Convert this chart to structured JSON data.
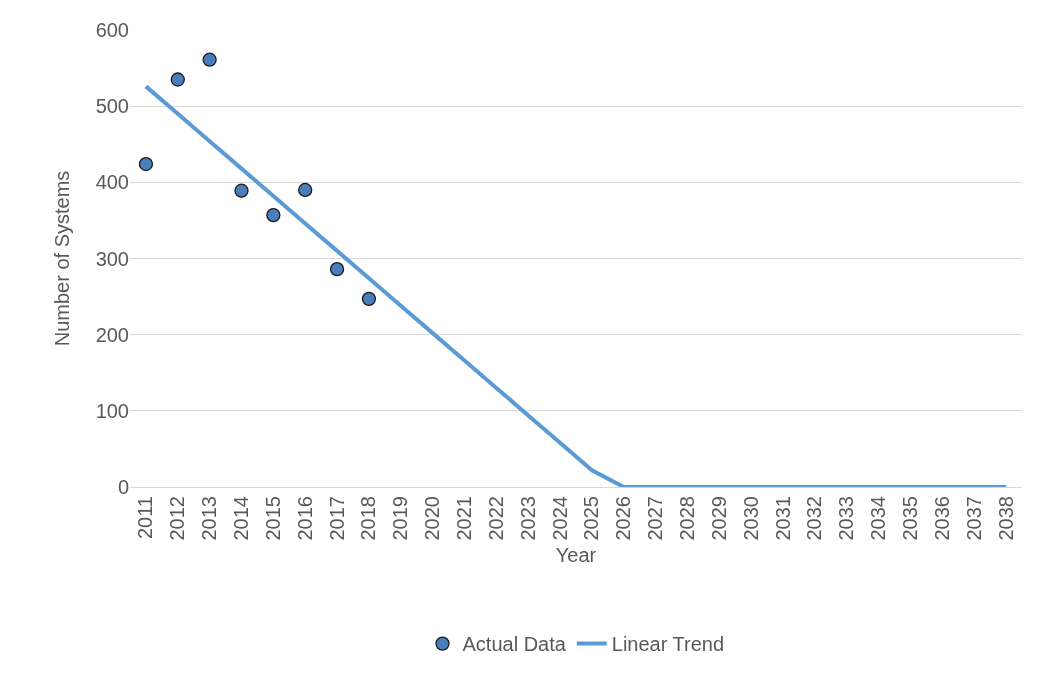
{
  "chart_data": {
    "type": "scatter",
    "xlabel": "Year",
    "ylabel": "Number of Systems",
    "categories": [
      "2011",
      "2012",
      "2013",
      "2014",
      "2015",
      "2016",
      "2017",
      "2018",
      "2019",
      "2020",
      "2021",
      "2022",
      "2023",
      "2024",
      "2025",
      "2026",
      "2027",
      "2028",
      "2029",
      "2030",
      "2031",
      "2032",
      "2033",
      "2034",
      "2035",
      "2036",
      "2037",
      "2038"
    ],
    "series": [
      {
        "name": "Actual Data",
        "color": "#4a7ebb",
        "marker": "circle",
        "values": [
          424,
          535,
          561,
          389,
          357,
          390,
          286,
          247,
          null,
          null,
          null,
          null,
          null,
          null,
          null,
          null,
          null,
          null,
          null,
          null,
          null,
          null,
          null,
          null,
          null,
          null,
          null,
          null
        ]
      },
      {
        "name": "Linear Trend",
        "type": "line",
        "color": "#5b9bd5",
        "marker": "none",
        "line_style": "solid",
        "values": [
          526,
          490,
          454,
          418,
          382,
          346,
          310,
          274,
          238,
          202,
          166,
          130,
          94,
          58,
          22,
          0,
          0,
          0,
          0,
          0,
          0,
          0,
          0,
          0,
          0,
          0,
          0,
          0
        ]
      }
    ],
    "ylim": [
      0,
      600
    ],
    "yticks": [
      0,
      100,
      200,
      300,
      400,
      500,
      600
    ],
    "grid": "y",
    "legend": "bottom"
  }
}
